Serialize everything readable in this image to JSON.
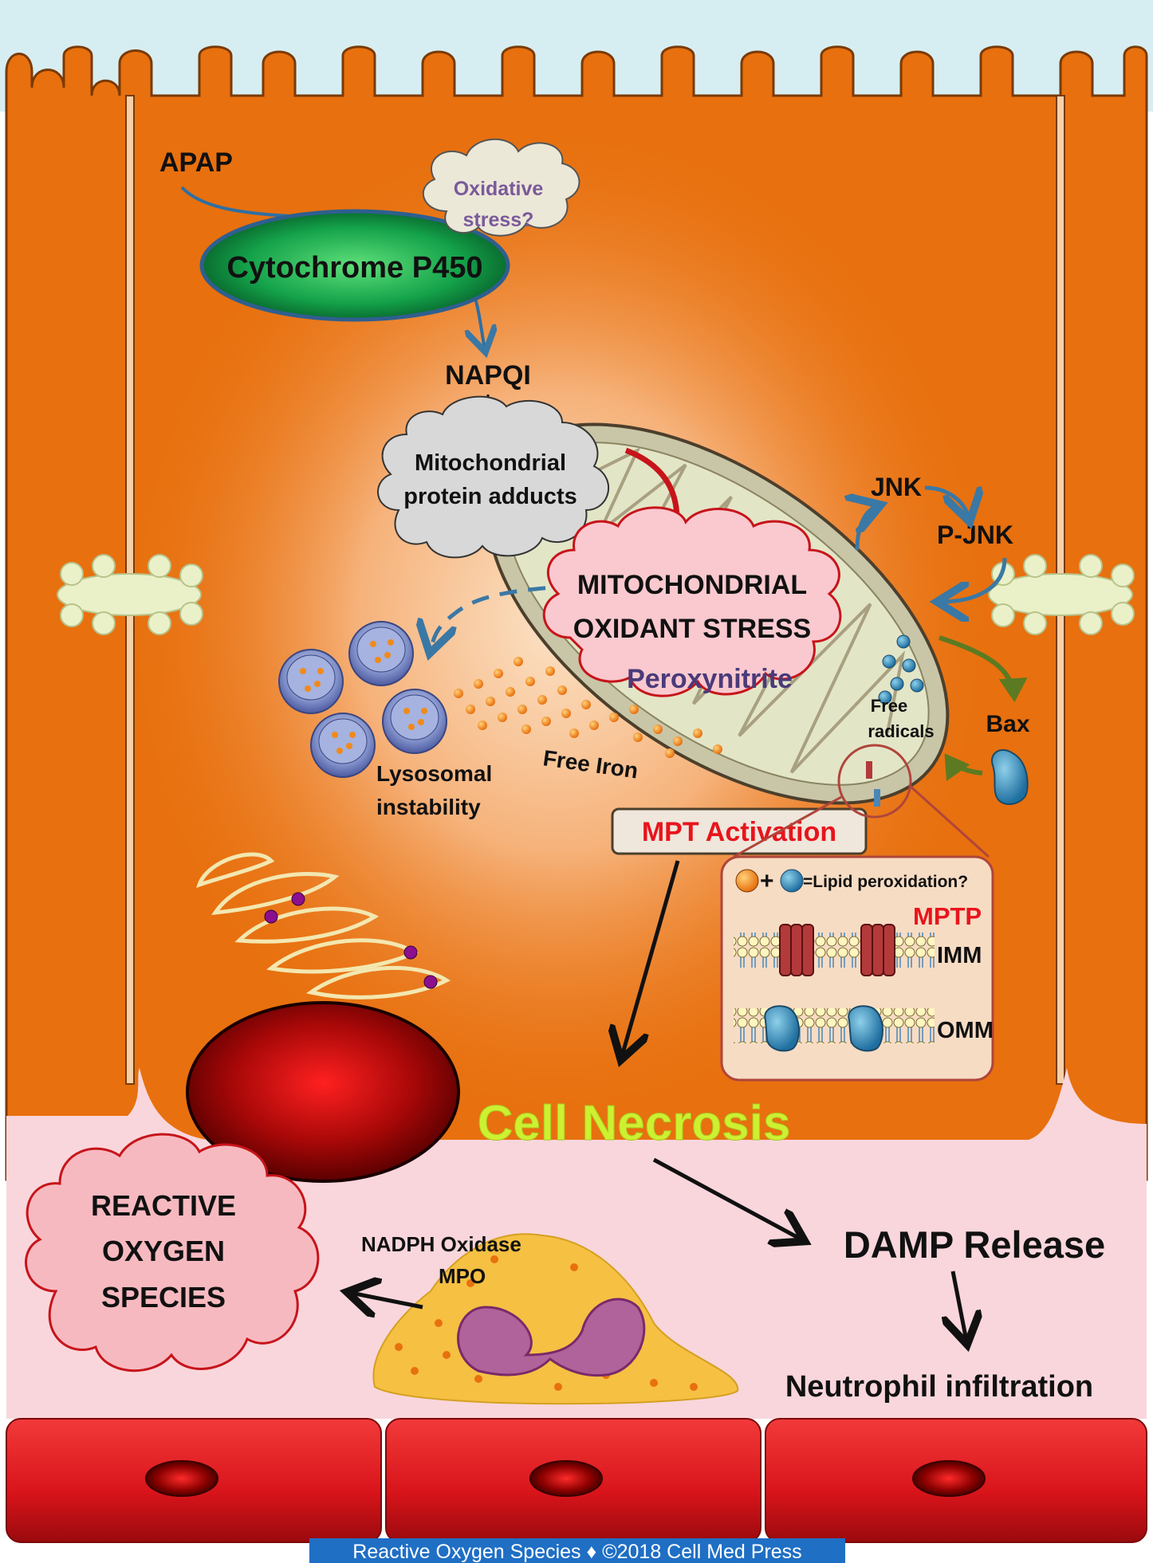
{
  "labels": {
    "apap": "APAP",
    "oxidative_stress_line1": "Oxidative",
    "oxidative_stress_line2": "stress?",
    "cytochrome": "Cytochrome P450",
    "napqi": "NAPQI",
    "adducts_line1": "Mitochondrial",
    "adducts_line2": "protein adducts",
    "mito_stress_line1": "MITOCHONDRIAL",
    "mito_stress_line2": "OXIDANT STRESS",
    "peroxynitrite": "Peroxynitrite",
    "jnk": "JNK",
    "pjnk": "P-JNK",
    "free_radicals_line1": "Free",
    "free_radicals_line2": "radicals",
    "bax": "Bax",
    "lysosomal_line1": "Lysosomal",
    "lysosomal_line2": "instability",
    "free_iron": "Free Iron",
    "mpt_activation": "MPT Activation",
    "lipid_peroxidation": "=Lipid peroxidation?",
    "mptp": "MPTP",
    "imm": "IMM",
    "omm": "OMM",
    "cell_necrosis": "Cell Necrosis",
    "ros_line1": "REACTIVE",
    "ros_line2": "OXYGEN",
    "ros_line3": "SPECIES",
    "nadph_oxidase": "NADPH Oxidase",
    "mpo": "MPO",
    "damp_release": "DAMP Release",
    "neutrophil_infiltration": "Neutrophil infiltration",
    "footer": "Reactive Oxygen Species ♦ ©2018 Cell Med Press"
  },
  "colors": {
    "cell_orange": "#e8700e",
    "cell_border": "#f5d0a8",
    "lumen_blue": "#d6eef2",
    "sinusoid_pink": "#f9d6dc",
    "endothelium_red": "#e52126",
    "mpt_red": "#e8141c",
    "necrosis_green": "#cdf031",
    "arrow_blue": "#3a78a5",
    "arrow_red": "#c7141a",
    "arrow_olive": "#5c7a22",
    "footer_bg": "#1f6fc4"
  }
}
